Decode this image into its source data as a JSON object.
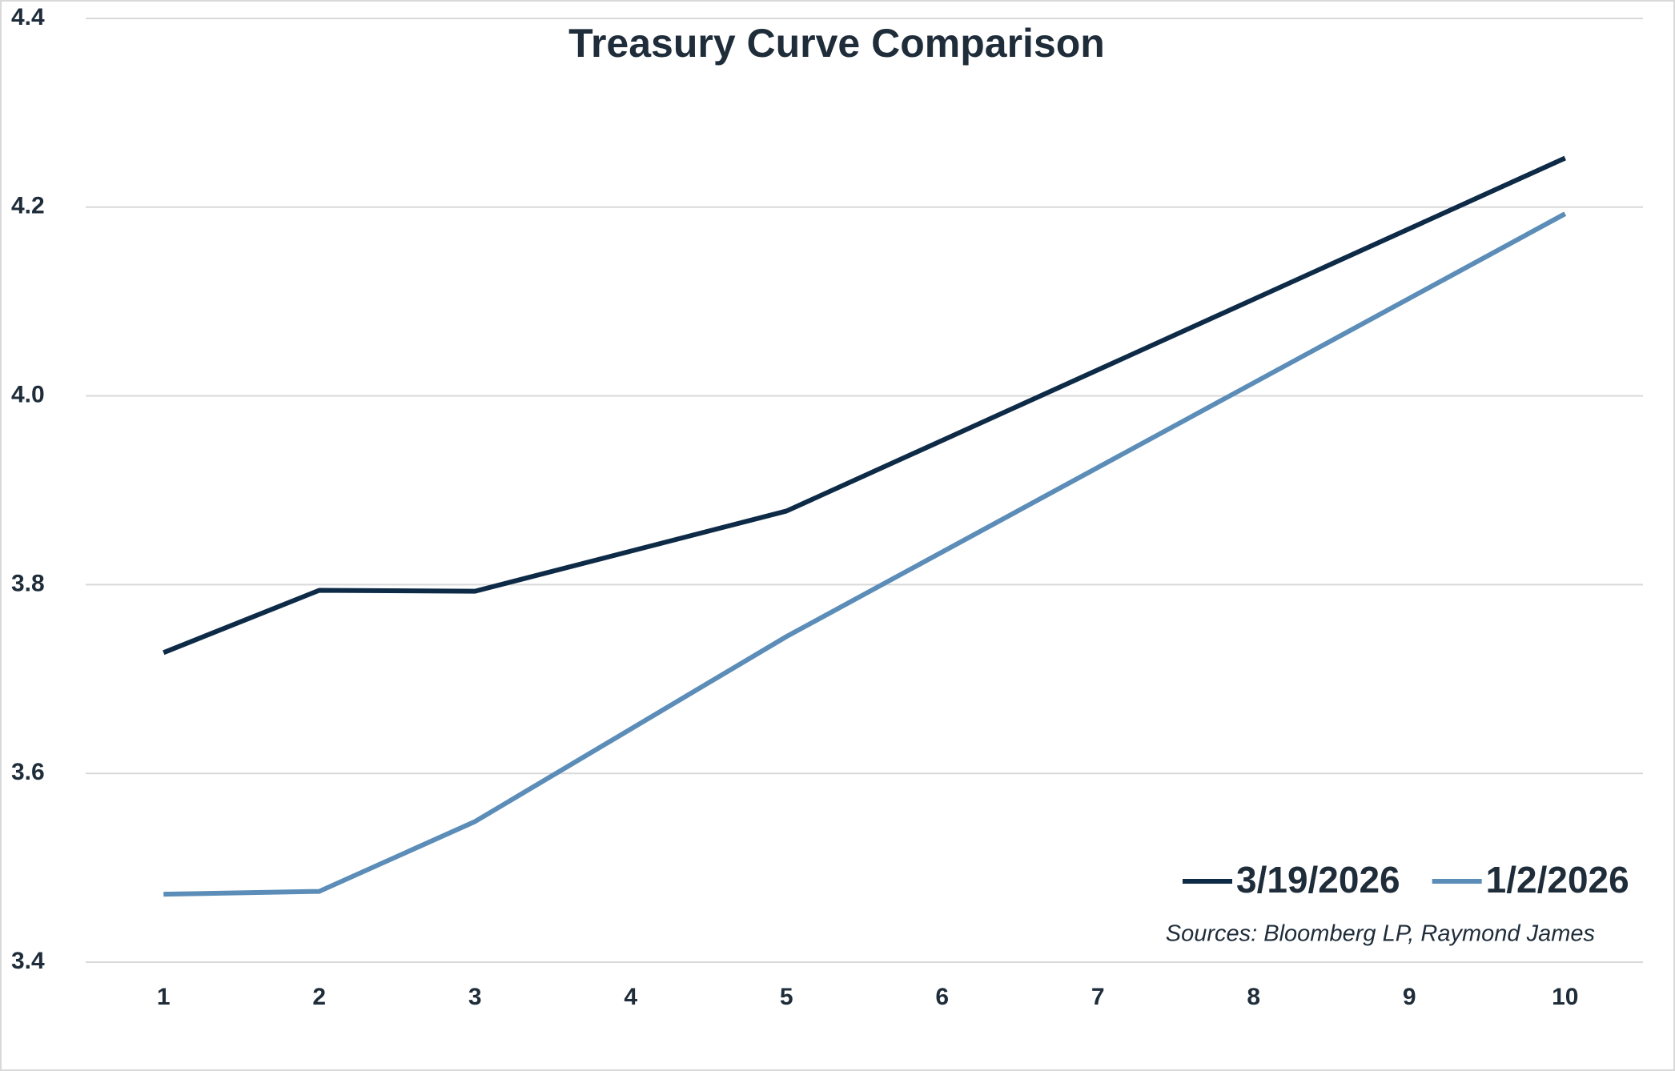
{
  "chart_data": {
    "type": "line",
    "title": "Treasury Curve Comparison",
    "source": "Sources: Bloomberg LP, Raymond James",
    "x": [
      1,
      2,
      3,
      5,
      10
    ],
    "series": [
      {
        "name": "3/19/2026",
        "color": "#0d2a47",
        "values": [
          3.728,
          3.794,
          3.793,
          3.878,
          4.252
        ]
      },
      {
        "name": "1/2/2026",
        "color": "#5b8db8",
        "values": [
          3.472,
          3.475,
          3.549,
          3.745,
          4.193
        ]
      }
    ],
    "xlim": [
      0.5,
      10.5
    ],
    "xticks": [
      1,
      2,
      3,
      4,
      5,
      6,
      7,
      8,
      9,
      10
    ],
    "ylim": [
      3.4,
      4.4
    ],
    "yticks": [
      3.4,
      3.6,
      3.8,
      {
        "value": 4,
        "label": "4.0"
      },
      4.2,
      4.4
    ],
    "grid": true,
    "legend": "lower right"
  }
}
